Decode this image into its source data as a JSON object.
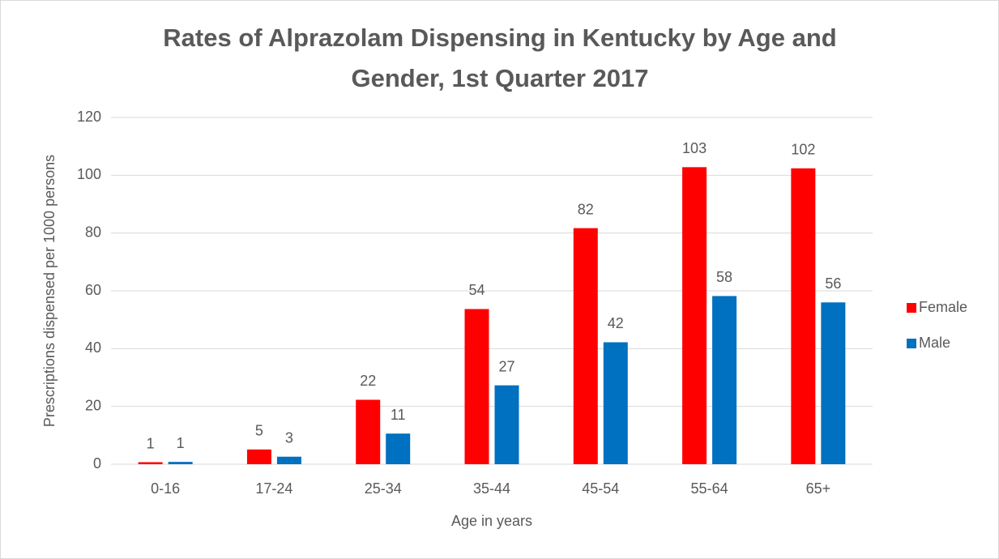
{
  "chart_data": {
    "type": "bar",
    "title": "Rates of Alprazolam Dispensing in Kentucky by Age and Gender, 1st Quarter 2017",
    "xlabel": "Age in years",
    "ylabel": "Prescriptions dispensed per 1000 persons",
    "categories": [
      "0-16",
      "17-24",
      "25-34",
      "35-44",
      "45-54",
      "55-64",
      "65+"
    ],
    "series": [
      {
        "name": "Female",
        "color": "#ff0000",
        "values": [
          0.7,
          5.1,
          22.3,
          53.7,
          81.7,
          102.8,
          102.4
        ],
        "value_labels": [
          "1",
          "5",
          "22",
          "54",
          "82",
          "103",
          "102"
        ]
      },
      {
        "name": "Male",
        "color": "#0070c0",
        "values": [
          0.8,
          2.6,
          10.6,
          27.3,
          42.2,
          58.2,
          56.0
        ],
        "value_labels": [
          "1",
          "3",
          "11",
          "27",
          "42",
          "58",
          "56"
        ]
      }
    ],
    "ylim": [
      0,
      120
    ],
    "yticks": [
      0,
      20,
      40,
      60,
      80,
      100,
      120
    ],
    "grid": true,
    "legend": "right"
  }
}
